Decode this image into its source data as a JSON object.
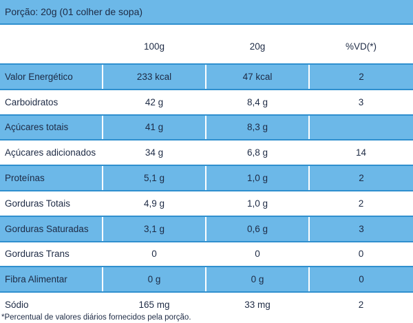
{
  "header": {
    "serving": "Porção: 20g (01 colher de sopa)"
  },
  "columns": [
    "",
    "100g",
    "20g",
    "%VD(*)"
  ],
  "rows": [
    [
      "Valor Energético",
      "233 kcal",
      "47 kcal",
      "2"
    ],
    [
      "Carboidratos",
      "42 g",
      "8,4 g",
      "3"
    ],
    [
      "Açúcares totais",
      "41 g",
      "8,3 g",
      ""
    ],
    [
      "Açúcares adicionados",
      "34 g",
      "6,8 g",
      "14"
    ],
    [
      "Proteínas",
      "5,1 g",
      "1,0 g",
      "2"
    ],
    [
      "Gorduras Totais",
      "4,9 g",
      "1,0 g",
      "2"
    ],
    [
      "Gorduras Saturadas",
      "3,1 g",
      "0,6 g",
      "3"
    ],
    [
      "Gorduras Trans",
      "0",
      "0",
      "0"
    ],
    [
      "Fibra Alimentar",
      "0 g",
      "0 g",
      "0"
    ],
    [
      "Sódio",
      "165 mg",
      "33 mg",
      "2"
    ]
  ],
  "footnote": "*Percentual de valores diários fornecidos pela porção.",
  "colors": {
    "band": "#6cb8e8",
    "border": "#2f8fce",
    "text": "#1d2a44"
  }
}
